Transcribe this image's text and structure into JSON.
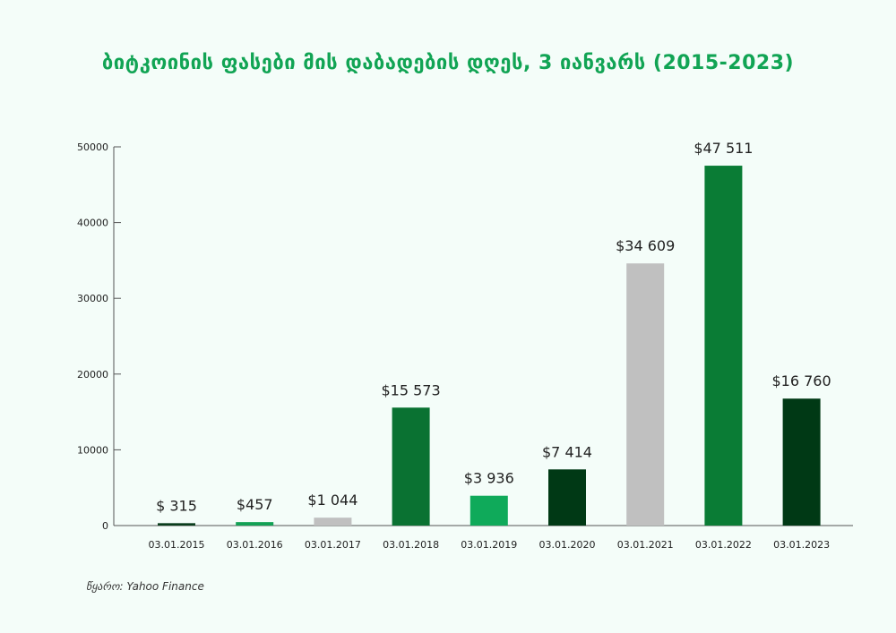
{
  "title": "ბიტკოინის ფასები მის დაბადების დღეს, 3 იანვარს (2015-2023)",
  "source": "წყარო: Yahoo Finance",
  "chart_data": {
    "type": "bar",
    "title": "ბიტკოინის ფასები მის დაბადების დღეს, 3 იანვარს (2015-2023)",
    "xlabel": "",
    "ylabel": "",
    "categories": [
      "03.01.2015",
      "03.01.2016",
      "03.01.2017",
      "03.01.2018",
      "03.01.2019",
      "03.01.2020",
      "03.01.2021",
      "03.01.2022",
      "03.01.2023"
    ],
    "values": [
      315,
      457,
      1044,
      15573,
      3936,
      7414,
      34609,
      47511,
      16760
    ],
    "data_labels": [
      "$ 315",
      "$457",
      "$1 044",
      "$15 573",
      "$3 936",
      "$7 414",
      "$34 609",
      "$47 511",
      "$16 760"
    ],
    "bar_colors": [
      "#0a3d1c",
      "#13a155",
      "#c0c0c0",
      "#0a7232",
      "#0faa5a",
      "#003915",
      "#c0c0c0",
      "#0a7c35",
      "#003915"
    ],
    "ylim": [
      0,
      50000
    ],
    "yticks": [
      0,
      10000,
      20000,
      30000,
      40000,
      50000
    ],
    "grid": false,
    "legend": "none"
  }
}
